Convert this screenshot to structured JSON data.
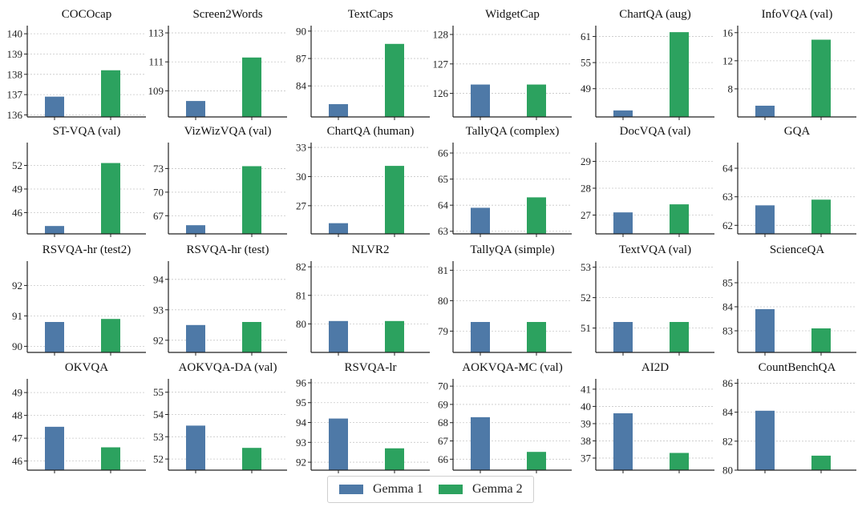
{
  "colors": {
    "gemma1": "#4e79a7",
    "gemma2": "#2ca25f",
    "grid": "#c8c8c8",
    "axis": "#222222"
  },
  "legend": {
    "gemma1": "Gemma 1",
    "gemma2": "Gemma 2"
  },
  "chart_data": [
    {
      "type": "bar",
      "title": "COCOcap",
      "categories": [
        "Gemma 1",
        "Gemma 2"
      ],
      "values": [
        136.9,
        138.2
      ],
      "ylim": [
        135.9,
        140.4
      ],
      "yticks": [
        "136",
        "137",
        "138",
        "139",
        "140"
      ]
    },
    {
      "type": "bar",
      "title": "Screen2Words",
      "categories": [
        "Gemma 1",
        "Gemma 2"
      ],
      "values": [
        108.3,
        111.3
      ],
      "ylim": [
        107.2,
        113.5
      ],
      "yticks": [
        "109",
        "111",
        "113"
      ]
    },
    {
      "type": "bar",
      "title": "TextCaps",
      "categories": [
        "Gemma 1",
        "Gemma 2"
      ],
      "values": [
        82.0,
        88.6
      ],
      "ylim": [
        80.6,
        90.6
      ],
      "yticks": [
        "84",
        "87",
        "90"
      ]
    },
    {
      "type": "bar",
      "title": "WidgetCap",
      "categories": [
        "Gemma 1",
        "Gemma 2"
      ],
      "values": [
        126.3,
        126.3
      ],
      "ylim": [
        125.2,
        128.3
      ],
      "yticks": [
        "126",
        "127",
        "128"
      ]
    },
    {
      "type": "bar",
      "title": "ChartQA (aug)",
      "categories": [
        "Gemma 1",
        "Gemma 2"
      ],
      "values": [
        44.0,
        62.0
      ],
      "ylim": [
        42.5,
        63.5
      ],
      "yticks": [
        "49",
        "55",
        "61"
      ]
    },
    {
      "type": "bar",
      "title": "InfoVQA (val)",
      "categories": [
        "Gemma 1",
        "Gemma 2"
      ],
      "values": [
        5.6,
        15.0
      ],
      "ylim": [
        4.0,
        17.0
      ],
      "yticks": [
        "8",
        "12",
        "16"
      ]
    },
    {
      "type": "bar",
      "title": "ST-VQA (val)",
      "categories": [
        "Gemma 1",
        "Gemma 2"
      ],
      "values": [
        44.3,
        52.3
      ],
      "ylim": [
        43.3,
        54.9
      ],
      "yticks": [
        "46",
        "49",
        "52"
      ]
    },
    {
      "type": "bar",
      "title": "VizWizVQA (val)",
      "categories": [
        "Gemma 1",
        "Gemma 2"
      ],
      "values": [
        65.8,
        73.3
      ],
      "ylim": [
        64.7,
        76.3
      ],
      "yticks": [
        "67",
        "70",
        "73"
      ]
    },
    {
      "type": "bar",
      "title": "ChartQA (human)",
      "categories": [
        "Gemma 1",
        "Gemma 2"
      ],
      "values": [
        25.2,
        31.1
      ],
      "ylim": [
        24.1,
        33.5
      ],
      "yticks": [
        "27",
        "30",
        "33"
      ]
    },
    {
      "type": "bar",
      "title": "TallyQA (complex)",
      "categories": [
        "Gemma 1",
        "Gemma 2"
      ],
      "values": [
        63.9,
        64.3
      ],
      "ylim": [
        62.9,
        66.4
      ],
      "yticks": [
        "63",
        "64",
        "65",
        "66"
      ]
    },
    {
      "type": "bar",
      "title": "DocVQA (val)",
      "categories": [
        "Gemma 1",
        "Gemma 2"
      ],
      "values": [
        27.1,
        27.4
      ],
      "ylim": [
        26.3,
        29.7
      ],
      "yticks": [
        "27",
        "28",
        "29"
      ]
    },
    {
      "type": "bar",
      "title": "GQA",
      "categories": [
        "Gemma 1",
        "Gemma 2"
      ],
      "values": [
        62.7,
        62.9
      ],
      "ylim": [
        61.7,
        64.9
      ],
      "yticks": [
        "62",
        "63",
        "64"
      ]
    },
    {
      "type": "bar",
      "title": "RSVQA-hr (test2)",
      "categories": [
        "Gemma 1",
        "Gemma 2"
      ],
      "values": [
        90.8,
        90.9
      ],
      "ylim": [
        89.8,
        92.8
      ],
      "yticks": [
        "90",
        "91",
        "92"
      ]
    },
    {
      "type": "bar",
      "title": "RSVQA-hr (test)",
      "categories": [
        "Gemma 1",
        "Gemma 2"
      ],
      "values": [
        92.5,
        92.6
      ],
      "ylim": [
        91.6,
        94.6
      ],
      "yticks": [
        "92",
        "93",
        "94"
      ]
    },
    {
      "type": "bar",
      "title": "NLVR2",
      "categories": [
        "Gemma 1",
        "Gemma 2"
      ],
      "values": [
        80.1,
        80.1
      ],
      "ylim": [
        79.0,
        82.2
      ],
      "yticks": [
        "80",
        "81",
        "82"
      ]
    },
    {
      "type": "bar",
      "title": "TallyQA (simple)",
      "categories": [
        "Gemma 1",
        "Gemma 2"
      ],
      "values": [
        79.3,
        79.3
      ],
      "ylim": [
        78.3,
        81.3
      ],
      "yticks": [
        "79",
        "80",
        "81"
      ]
    },
    {
      "type": "bar",
      "title": "TextVQA (val)",
      "categories": [
        "Gemma 1",
        "Gemma 2"
      ],
      "values": [
        51.2,
        51.2
      ],
      "ylim": [
        50.2,
        53.2
      ],
      "yticks": [
        "51",
        "52",
        "53"
      ]
    },
    {
      "type": "bar",
      "title": "ScienceQA",
      "categories": [
        "Gemma 1",
        "Gemma 2"
      ],
      "values": [
        83.9,
        83.1
      ],
      "ylim": [
        82.1,
        85.9
      ],
      "yticks": [
        "83",
        "84",
        "85"
      ]
    },
    {
      "type": "bar",
      "title": "OKVQA",
      "categories": [
        "Gemma 1",
        "Gemma 2"
      ],
      "values": [
        47.5,
        46.6
      ],
      "ylim": [
        45.6,
        49.6
      ],
      "yticks": [
        "46",
        "47",
        "48",
        "49"
      ]
    },
    {
      "type": "bar",
      "title": "AOKVQA-DA (val)",
      "categories": [
        "Gemma 1",
        "Gemma 2"
      ],
      "values": [
        53.5,
        52.5
      ],
      "ylim": [
        51.5,
        55.6
      ],
      "yticks": [
        "52",
        "53",
        "54",
        "55"
      ]
    },
    {
      "type": "bar",
      "title": "RSVQA-lr",
      "categories": [
        "Gemma 1",
        "Gemma 2"
      ],
      "values": [
        94.2,
        92.7
      ],
      "ylim": [
        91.6,
        96.2
      ],
      "yticks": [
        "92",
        "93",
        "94",
        "95",
        "96"
      ]
    },
    {
      "type": "bar",
      "title": "AOKVQA-MC (val)",
      "categories": [
        "Gemma 1",
        "Gemma 2"
      ],
      "values": [
        68.3,
        66.4
      ],
      "ylim": [
        65.4,
        70.4
      ],
      "yticks": [
        "66",
        "67",
        "68",
        "69",
        "70"
      ]
    },
    {
      "type": "bar",
      "title": "AI2D",
      "categories": [
        "Gemma 1",
        "Gemma 2"
      ],
      "values": [
        39.6,
        37.3
      ],
      "ylim": [
        36.3,
        41.6
      ],
      "yticks": [
        "37",
        "38",
        "39",
        "40",
        "41"
      ]
    },
    {
      "type": "bar",
      "title": "CountBenchQA",
      "categories": [
        "Gemma 1",
        "Gemma 2"
      ],
      "values": [
        84.1,
        81.0
      ],
      "ylim": [
        80.0,
        86.3
      ],
      "yticks": [
        "80",
        "82",
        "84",
        "86"
      ]
    }
  ]
}
